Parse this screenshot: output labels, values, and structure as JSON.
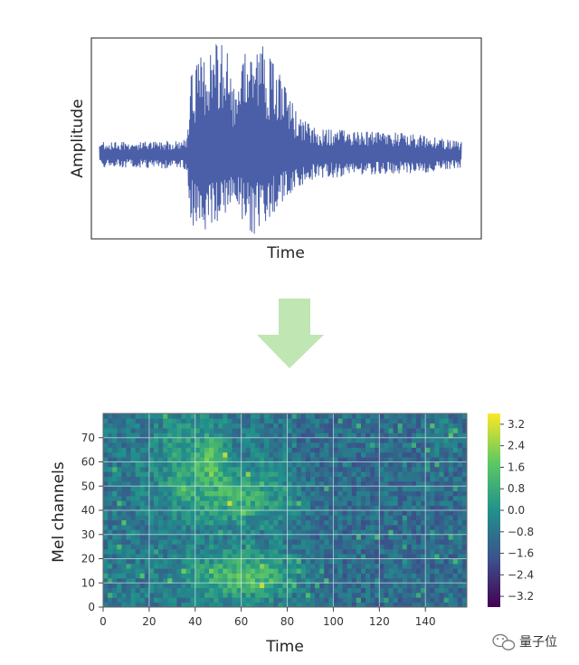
{
  "chart_data": [
    {
      "type": "line",
      "xlabel": "Time",
      "ylabel": "Amplitude",
      "x_ticks": "none",
      "y_ticks": "none",
      "grid": false,
      "color": "#4a5fa8",
      "envelope": {
        "x": [
          0,
          0.1,
          0.2,
          0.24,
          0.25,
          0.3,
          0.35,
          0.38,
          0.4,
          0.42,
          0.45,
          0.5,
          0.55,
          0.6,
          0.65,
          0.7,
          0.8,
          0.9,
          1.0
        ],
        "upper": [
          0.1,
          0.1,
          0.11,
          0.12,
          0.6,
          0.88,
          0.86,
          0.45,
          0.78,
          0.92,
          0.86,
          0.62,
          0.3,
          0.2,
          0.2,
          0.18,
          0.18,
          0.15,
          0.1
        ],
        "lower": [
          -0.1,
          -0.1,
          -0.11,
          -0.12,
          -0.55,
          -0.6,
          -0.45,
          -0.4,
          -0.55,
          -0.65,
          -0.55,
          -0.4,
          -0.25,
          -0.18,
          -0.18,
          -0.16,
          -0.15,
          -0.14,
          -0.1
        ]
      }
    },
    {
      "type": "heatmap",
      "xlabel": "Time",
      "ylabel": "Mel channels",
      "xlim": [
        0,
        158
      ],
      "ylim": [
        0,
        80
      ],
      "x_ticks": [
        0,
        20,
        40,
        60,
        80,
        100,
        120,
        140
      ],
      "y_ticks": [
        0,
        10,
        20,
        30,
        40,
        50,
        60,
        70
      ],
      "grid": true,
      "colormap": [
        "#440154",
        "#3b528b",
        "#21918c",
        "#5ec962",
        "#fde725"
      ],
      "colorbar": {
        "range": [
          -3.6,
          3.6
        ],
        "ticks": [
          "3.2",
          "2.4",
          "1.6",
          "0.8",
          "0.0",
          "−0.8",
          "−1.6",
          "−2.4",
          "−3.2"
        ],
        "tick_values": [
          3.2,
          2.4,
          1.6,
          0.8,
          0.0,
          -0.8,
          -1.6,
          -2.4,
          -3.2
        ]
      }
    }
  ],
  "arrow": {
    "icon": "down-arrow-icon",
    "color": "#bfe6b3"
  },
  "watermark": {
    "icon": "wechat-icon",
    "text": "量子位"
  }
}
